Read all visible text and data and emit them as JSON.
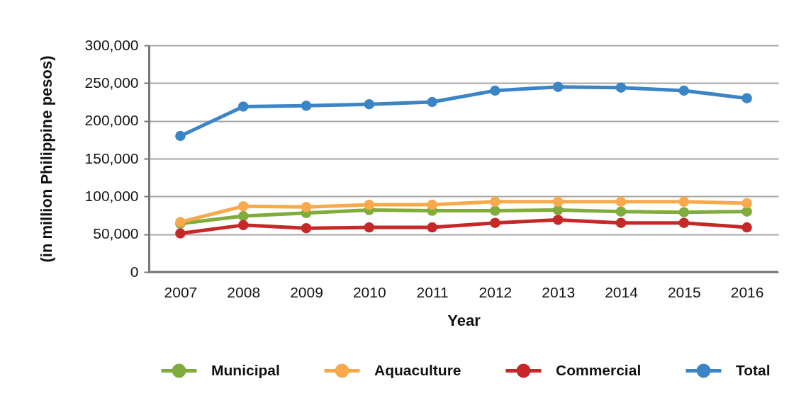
{
  "chart_data": {
    "type": "line",
    "xlabel": "Year",
    "ylabel": "(in million Philippine pesos)",
    "categories": [
      "2007",
      "2008",
      "2009",
      "2010",
      "2011",
      "2012",
      "2013",
      "2014",
      "2015",
      "2016"
    ],
    "series": [
      {
        "name": "Municipal",
        "color": "#80ac3c",
        "values": [
          64000,
          74000,
          78000,
          82000,
          81000,
          81000,
          82000,
          80000,
          79000,
          80000
        ]
      },
      {
        "name": "Aquaculture",
        "color": "#f8a94b",
        "values": [
          66000,
          87000,
          86000,
          89000,
          89000,
          93000,
          93000,
          93000,
          93000,
          91000
        ]
      },
      {
        "name": "Commercial",
        "color": "#c62828",
        "values": [
          51000,
          62000,
          58000,
          59000,
          59000,
          65000,
          69000,
          65000,
          65000,
          59000
        ]
      },
      {
        "name": "Total",
        "color": "#3b84c6",
        "values": [
          180000,
          219000,
          220000,
          222000,
          225000,
          240000,
          245000,
          244000,
          240000,
          230000
        ]
      }
    ],
    "ylim": [
      0,
      300000
    ],
    "yticks": [
      {
        "value": 0,
        "label": "0"
      },
      {
        "value": 50000,
        "label": "50,000"
      },
      {
        "value": 100000,
        "label": "100,000"
      },
      {
        "value": 150000,
        "label": "150,000"
      },
      {
        "value": 200000,
        "label": "200,000"
      },
      {
        "value": 250000,
        "label": "250,000"
      },
      {
        "value": 300000,
        "label": "300,000"
      }
    ],
    "grid": "y",
    "legend": "bottom",
    "marker": "circle",
    "line_style": "solid"
  }
}
